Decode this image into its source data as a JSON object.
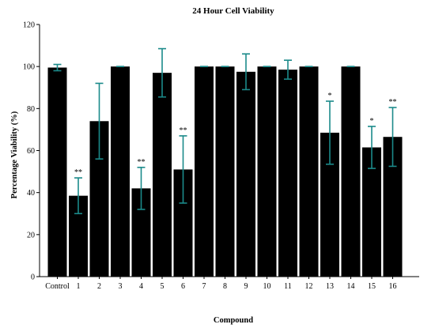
{
  "chart_data": {
    "type": "bar",
    "title": "24 Hour Cell Viability",
    "xlabel": "Compound",
    "ylabel": "Percentage Viability (%)",
    "ylim": [
      0,
      120
    ],
    "yticks": [
      "0",
      "20",
      "40",
      "60",
      "80",
      "100",
      "120"
    ],
    "categories": [
      "Control",
      "1",
      "2",
      "3",
      "4",
      "5",
      "6",
      "7",
      "8",
      "9",
      "10",
      "11",
      "12",
      "13",
      "14",
      "15",
      "16"
    ],
    "values": [
      99.5,
      38.5,
      74,
      100,
      42,
      97,
      51,
      100,
      100,
      97.5,
      100,
      98.5,
      100,
      68.5,
      100,
      61.5,
      66.5
    ],
    "error": [
      1.5,
      8.5,
      18,
      0,
      10,
      11.5,
      16,
      0,
      0,
      8.5,
      0,
      4.5,
      0,
      15,
      0,
      10,
      14
    ],
    "significance": [
      "",
      "**",
      "",
      "",
      "**",
      "",
      "**",
      "",
      "",
      "",
      "",
      "",
      "",
      "*",
      "",
      "*",
      "**"
    ],
    "colors": {
      "bar": "#000000",
      "error_bar": "#1b8a8a",
      "axis": "#000000"
    },
    "grid": false,
    "legend": "none"
  }
}
